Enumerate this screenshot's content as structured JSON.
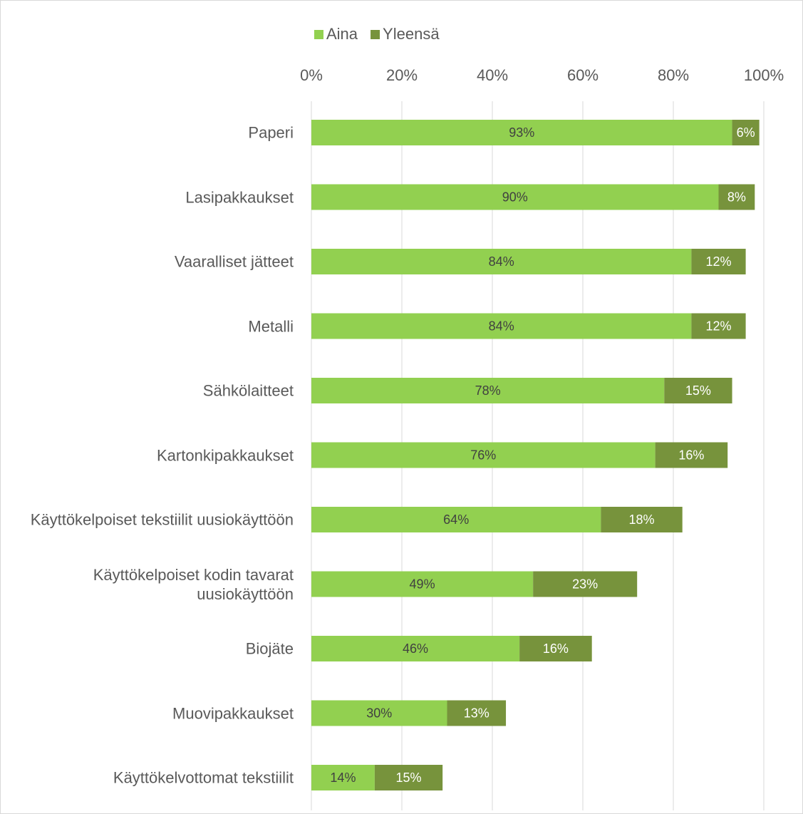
{
  "chart_data": {
    "type": "bar",
    "orientation": "horizontal",
    "stacked": true,
    "categories": [
      "Paperi",
      "Lasipakkaukset",
      "Vaaralliset jätteet",
      "Metalli",
      "Sähkölaitteet",
      "Kartonkipakkaukset",
      "Käyttökelpoiset tekstiilit uusiokäyttöön",
      "Käyttökelpoiset kodin tavarat uusiokäyttöön",
      "Biojäte",
      "Muovipakkaukset",
      "Käyttökelvottomat tekstiilit"
    ],
    "series": [
      {
        "name": "Aina",
        "color": "#92d050",
        "label_color": "#404040",
        "values": [
          93,
          90,
          84,
          84,
          78,
          76,
          64,
          49,
          46,
          30,
          14
        ],
        "value_labels": [
          "93%",
          "90%",
          "84%",
          "84%",
          "78%",
          "76%",
          "64%",
          "49%",
          "46%",
          "30%",
          "14%"
        ]
      },
      {
        "name": "Yleensä",
        "color": "#77933c",
        "label_color": "#ffffff",
        "values": [
          6,
          8,
          12,
          12,
          15,
          16,
          18,
          23,
          16,
          13,
          15
        ],
        "value_labels": [
          "6%",
          "8%",
          "12%",
          "12%",
          "15%",
          "16%",
          "18%",
          "23%",
          "16%",
          "13%",
          "15%"
        ]
      }
    ],
    "xlim": [
      0,
      100
    ],
    "xticks": [
      {
        "value": 0,
        "label": "0%"
      },
      {
        "value": 20,
        "label": "20%"
      },
      {
        "value": 40,
        "label": "40%"
      },
      {
        "value": 60,
        "label": "60%"
      },
      {
        "value": 80,
        "label": "80%"
      },
      {
        "value": 100,
        "label": "100%"
      }
    ],
    "grid": true,
    "legend": "top"
  }
}
